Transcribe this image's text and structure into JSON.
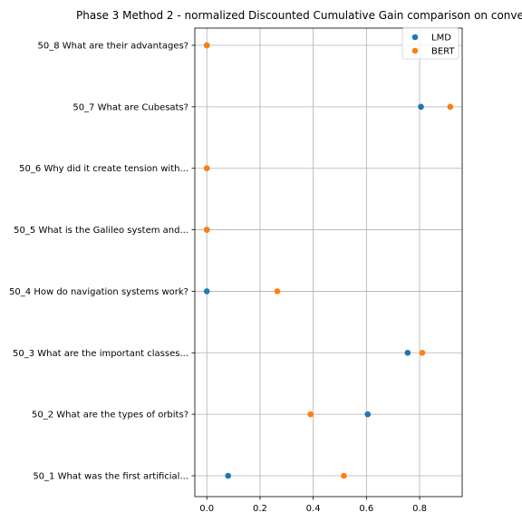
{
  "chart_data": {
    "type": "scatter",
    "title": "Phase 3 Method 2 - normalized Discounted Cumulative Gain comparison on conve",
    "xlabel": "",
    "ylabel": "",
    "xlim": [
      -0.045,
      0.96
    ],
    "xticks": [
      0.0,
      0.2,
      0.4,
      0.6,
      0.8
    ],
    "xtick_labels": [
      "0.0",
      "0.2",
      "0.4",
      "0.6",
      "0.8"
    ],
    "grid": true,
    "legend_position": "top-right",
    "categories": [
      "50_1 What was the first artificial...",
      "50_2 What are the types of orbits?",
      "50_3 What are the important classes...",
      "50_4 How do navigation systems work?",
      "50_5 What is the Galileo system and...",
      "50_6 Why did it create tension with...",
      "50_7 What are Cubesats?",
      "50_8 What are their advantages?"
    ],
    "series": [
      {
        "name": "LMD",
        "color": "#1f77b4",
        "values": [
          0.08,
          0.605,
          0.755,
          0.0,
          0.0,
          0.0,
          0.805,
          0.0
        ]
      },
      {
        "name": "BERT",
        "color": "#ff7f0e",
        "values": [
          0.515,
          0.39,
          0.81,
          0.265,
          0.0,
          0.0,
          0.915,
          0.0
        ]
      }
    ]
  }
}
